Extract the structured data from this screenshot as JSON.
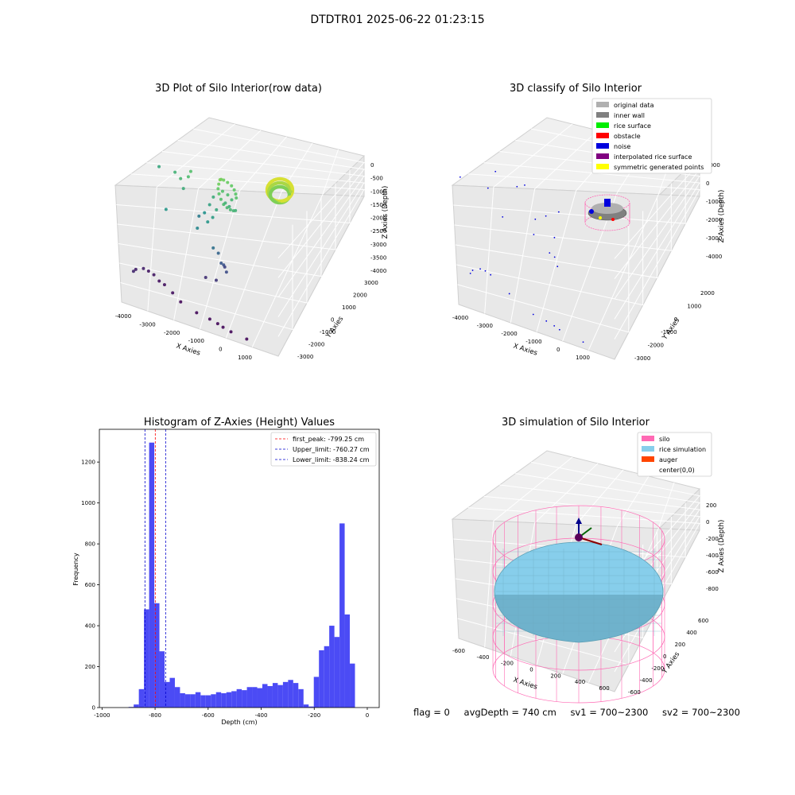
{
  "suptitle": "DTDTR01 2025-06-22 01:23:15",
  "footer": {
    "flag": "flag = 0",
    "avg_depth": "avgDepth = 740 cm",
    "sv1": "sv1 = 700~2300",
    "sv2": "sv2 = 700~2300"
  },
  "chart_data": [
    {
      "type": "scatter",
      "title": "3D Plot of Silo Interior(row data)",
      "projection": "3d",
      "xlabel": "X Axies",
      "ylabel": "Y Axies",
      "zlabel": "Z Axies (Depth)",
      "x_ticks": [
        "-4000",
        "-3000",
        "-2000",
        "-1000",
        "0",
        "1000"
      ],
      "y_ticks": [
        "-3000",
        "-2000",
        "-1000",
        "0",
        "1000",
        "2000",
        "3000"
      ],
      "z_ticks": [
        "-4000",
        "-3500",
        "-3000",
        "-2500",
        "-2000",
        "-1500",
        "-1000",
        "-500",
        "0"
      ],
      "xlim": [
        -4200,
        1800
      ],
      "ylim": [
        -3200,
        3200
      ],
      "zlim": [
        -4100,
        300
      ],
      "colormap": "viridis",
      "points": [
        [
          -300,
          300,
          -600
        ],
        [
          -250,
          420,
          -650
        ],
        [
          -150,
          500,
          -700
        ],
        [
          0,
          520,
          -750
        ],
        [
          150,
          480,
          -800
        ],
        [
          250,
          380,
          -850
        ],
        [
          300,
          250,
          -900
        ],
        [
          320,
          120,
          -950
        ],
        [
          -350,
          180,
          -700
        ],
        [
          -380,
          60,
          -800
        ],
        [
          -350,
          -60,
          -900
        ],
        [
          -280,
          -180,
          -1000
        ],
        [
          -180,
          -260,
          -1100
        ],
        [
          -50,
          -300,
          -1150
        ],
        [
          80,
          -280,
          -1200
        ],
        [
          200,
          -200,
          -1250
        ],
        [
          280,
          -80,
          -1300
        ],
        [
          -200,
          300,
          -1000
        ],
        [
          0,
          350,
          -1100
        ],
        [
          150,
          300,
          -1200
        ],
        [
          -100,
          150,
          -1300
        ],
        [
          50,
          100,
          -1350
        ],
        [
          -450,
          -100,
          -1500
        ],
        [
          -600,
          -300,
          -1700
        ],
        [
          -800,
          -500,
          -1800
        ],
        [
          -700,
          200,
          -1600
        ],
        [
          -550,
          400,
          -1400
        ],
        [
          -900,
          100,
          -1900
        ],
        [
          -1200,
          -600,
          -2100
        ],
        [
          -1100,
          400,
          -2300
        ],
        [
          -600,
          -800,
          -2500
        ],
        [
          -400,
          -700,
          -2700
        ],
        [
          -300,
          -900,
          -2900
        ],
        [
          -200,
          -800,
          -3000
        ],
        [
          -100,
          -1000,
          -3100
        ],
        [
          -150,
          -600,
          -3200
        ],
        [
          -500,
          -1200,
          -3400
        ],
        [
          -900,
          -1100,
          -3500
        ],
        [
          -2400,
          -600,
          -1800
        ],
        [
          -2600,
          1200,
          -1500
        ],
        [
          -2000,
          900,
          -1300
        ],
        [
          -3700,
          -2000,
          -3600
        ],
        [
          -3600,
          -1700,
          -3700
        ],
        [
          -3300,
          -1500,
          -3700
        ],
        [
          -3100,
          -1400,
          -3800
        ],
        [
          -2900,
          -1500,
          -3800
        ],
        [
          -2700,
          -1600,
          -3900
        ],
        [
          -2500,
          -1700,
          -3900
        ],
        [
          -2200,
          -2000,
          -3900
        ],
        [
          -1900,
          -2200,
          -4000
        ],
        [
          -1300,
          -2500,
          -4000
        ],
        [
          -800,
          -2600,
          -4000
        ],
        [
          -500,
          -2700,
          -4000
        ],
        [
          -300,
          -2800,
          -4000
        ],
        [
          0,
          -2900,
          -4000
        ],
        [
          600,
          -3000,
          -4000
        ],
        [
          -1800,
          500,
          -1200
        ],
        [
          -1700,
          300,
          -1400
        ],
        [
          -1500,
          600,
          -1100
        ],
        [
          -1400,
          800,
          -1000
        ]
      ]
    },
    {
      "type": "scatter",
      "title": "3D classify of Silo Interior",
      "projection": "3d",
      "xlabel": "X Axies",
      "ylabel": "Y Axies",
      "zlabel": "Z Axies (Depth)",
      "x_ticks": [
        "-4000",
        "-3000",
        "-2000",
        "-1000",
        "0",
        "1000"
      ],
      "y_ticks": [
        "-3000",
        "-2000",
        "-1000",
        "0",
        "1000",
        "2000"
      ],
      "z_ticks": [
        "-4000",
        "-3000",
        "-2000",
        "-1000",
        "0",
        "1000"
      ],
      "xlim": [
        -4200,
        1800
      ],
      "ylim": [
        -3200,
        2600
      ],
      "zlim": [
        -4100,
        1400
      ],
      "legend_position": "top-right",
      "legend": [
        {
          "label": "original data",
          "color": "#b0b0b0"
        },
        {
          "label": "inner wall",
          "color": "#808080"
        },
        {
          "label": "rice surface",
          "color": "#00ee00"
        },
        {
          "label": "obstacle",
          "color": "#ff0000"
        },
        {
          "label": "noise",
          "color": "#0000dd"
        },
        {
          "label": "interpolated rice surface",
          "color": "#800080"
        },
        {
          "label": "symmetric generated points",
          "color": "#ffff00"
        }
      ],
      "noise_points": [
        [
          -200,
          300,
          -1500
        ],
        [
          -400,
          -500,
          -2000
        ],
        [
          -700,
          200,
          -1800
        ],
        [
          -1200,
          -600,
          -2100
        ],
        [
          -1100,
          400,
          -2300
        ],
        [
          -600,
          -800,
          -2500
        ],
        [
          -400,
          -700,
          -2700
        ],
        [
          -300,
          -900,
          -2900
        ],
        [
          -2400,
          -600,
          -1800
        ],
        [
          -2600,
          1200,
          -1500
        ],
        [
          -3700,
          -2000,
          -3600
        ],
        [
          -3600,
          -1700,
          -3700
        ],
        [
          -3300,
          -1500,
          -3700
        ],
        [
          -3100,
          -1400,
          -3800
        ],
        [
          -2900,
          -1500,
          -3800
        ],
        [
          -2200,
          -2000,
          -3900
        ],
        [
          -1300,
          -2500,
          -4000
        ],
        [
          -800,
          -2600,
          -4000
        ],
        [
          -500,
          -2700,
          -4000
        ],
        [
          -300,
          -2800,
          -4000
        ],
        [
          600,
          -3000,
          -4000
        ],
        [
          -1800,
          500,
          -1200
        ],
        [
          -1500,
          600,
          -1100
        ],
        [
          -4000,
          200,
          -1400
        ],
        [
          -2900,
          900,
          -2100
        ]
      ]
    },
    {
      "type": "bar",
      "title": "Histogram of Z-Axies (Height) Values",
      "xlabel": "Depth (cm)",
      "ylabel": "Frequency",
      "xlim": [
        -1010,
        45
      ],
      "ylim": [
        0,
        1360
      ],
      "x_ticks": [
        -1000,
        -800,
        -600,
        -400,
        -200,
        0
      ],
      "y_ticks": [
        0,
        200,
        400,
        600,
        800,
        1000,
        1200
      ],
      "bin_width": 19.4,
      "bin_left_edges": [
        -900,
        -880.6,
        -861.2,
        -841.8,
        -822.4,
        -803,
        -783.6,
        -764.2,
        -744.8,
        -725.4,
        -706,
        -686.6,
        -667.2,
        -647.8,
        -628.4,
        -609,
        -589.6,
        -570.2,
        -550.8,
        -531.4,
        -512,
        -492.6,
        -473.2,
        -453.8,
        -434.4,
        -415,
        -395.6,
        -376.2,
        -356.8,
        -337.4,
        -318,
        -298.6,
        -279.2,
        -259.8,
        -240.4,
        -221,
        -201.6,
        -182.2,
        -162.8,
        -143.4,
        -124,
        -104.6,
        -85.2,
        -65.8,
        -46.4,
        -27
      ],
      "values": [
        3,
        15,
        90,
        480,
        1295,
        510,
        275,
        125,
        145,
        100,
        70,
        65,
        65,
        75,
        60,
        60,
        65,
        75,
        70,
        75,
        80,
        90,
        85,
        100,
        100,
        95,
        115,
        105,
        120,
        110,
        125,
        135,
        120,
        90,
        15,
        5,
        150,
        280,
        300,
        400,
        345,
        900,
        455,
        215,
        0,
        0
      ],
      "bar_color": "#4b4bf5",
      "reference_lines": [
        {
          "label": "first_peak: -799.25 cm",
          "x": -799.25,
          "color": "#ff0000"
        },
        {
          "label": "Upper_limit: -760.27 cm",
          "x": -760.27,
          "color": "#0000cc"
        },
        {
          "label": "Lower_limit: -838.24 cm",
          "x": -838.24,
          "color": "#0000cc"
        }
      ],
      "legend_position": "top-right"
    },
    {
      "type": "surface",
      "title": "3D simulation of Silo Interior",
      "projection": "3d",
      "xlabel": "X Axies",
      "ylabel": "Y Axies",
      "zlabel": "Z Axies (Depth)",
      "x_ticks": [
        "-600",
        "-400",
        "-200",
        "0",
        "200",
        "400",
        "600"
      ],
      "y_ticks": [
        "-600",
        "-400",
        "-200",
        "0",
        "200",
        "400",
        "600"
      ],
      "z_ticks": [
        "-800",
        "-600",
        "-400",
        "-200",
        "0",
        "200"
      ],
      "legend_position": "top-right",
      "legend": [
        {
          "label": "silo",
          "color": "#ff69b4"
        },
        {
          "label": "rice simulation",
          "color": "#87ceeb"
        },
        {
          "label": "auger",
          "color": "#ff4500"
        },
        {
          "label": "center(0,0)",
          "color": "#ffffff"
        }
      ]
    }
  ]
}
